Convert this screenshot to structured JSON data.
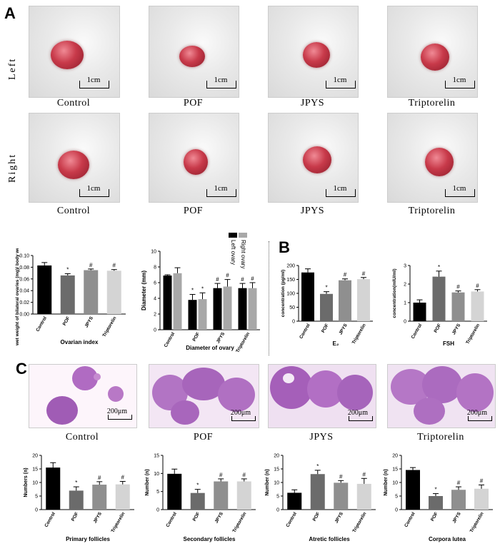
{
  "panels": {
    "a": "A",
    "b": "B",
    "c": "C"
  },
  "sides": {
    "left": "Left",
    "right": "Right"
  },
  "groups": [
    "Control",
    "POF",
    "JPYS",
    "Triptorelin"
  ],
  "scale_ovary": "1cm",
  "scale_histo": "200μm",
  "legend": {
    "left": "Left ovary",
    "right": "Right ovary"
  },
  "colors": {
    "black": "#000000",
    "dark_gray": "#6b6b6b",
    "mid_gray": "#8f8f8f",
    "light_gray": "#d4d4d4",
    "right_gray": "#a8a8a8"
  },
  "chart_data": [
    {
      "type": "bar",
      "id": "ovarian",
      "title": "Ovarian index",
      "ylabel": "wet weight of bilateral ovaries (mg)/ body weight (g)(%)",
      "categories": [
        "Control",
        "POF",
        "JPYS",
        "Triptorelin"
      ],
      "values": [
        0.083,
        0.066,
        0.075,
        0.074
      ],
      "errors": [
        0.005,
        0.003,
        0.002,
        0.002
      ],
      "marks": [
        "",
        "*",
        "#",
        "#"
      ],
      "ylim": [
        0,
        0.1
      ],
      "yticks": [
        "0.00",
        "0.02",
        "0.04",
        "0.06",
        "0.08",
        "0.10"
      ]
    },
    {
      "type": "bar",
      "id": "diameter",
      "title": "Diameter of ovary",
      "ylabel": "Diameter (mm)",
      "categories": [
        "Control",
        "POF",
        "JPYS",
        "Triptorelin"
      ],
      "series": [
        {
          "name": "Left ovary",
          "values": [
            6.9,
            3.8,
            5.3,
            5.3
          ],
          "errors": [
            0.1,
            0.7,
            0.6,
            0.6
          ],
          "marks": [
            "",
            "*",
            "#",
            "#"
          ]
        },
        {
          "name": "Right ovary",
          "values": [
            7.2,
            3.9,
            5.5,
            5.3
          ],
          "errors": [
            0.7,
            0.8,
            0.9,
            0.7
          ],
          "marks": [
            "",
            "*",
            "#",
            "#"
          ]
        }
      ],
      "ylim": [
        0,
        10
      ],
      "yticks": [
        "0",
        "2",
        "4",
        "6",
        "8",
        "10"
      ]
    },
    {
      "type": "bar",
      "id": "e2",
      "title": "E₂",
      "ylabel": "concentration (pg/ml)",
      "categories": [
        "Control",
        "POF",
        "JPYS",
        "Triptorelin"
      ],
      "values": [
        175,
        98,
        147,
        151
      ],
      "errors": [
        13,
        8,
        5,
        6
      ],
      "marks": [
        "",
        "*",
        "#",
        "#"
      ],
      "ylim": [
        0,
        200
      ],
      "yticks": [
        "0",
        "50",
        "100",
        "150",
        "200"
      ]
    },
    {
      "type": "bar",
      "id": "fsh",
      "title": "FSH",
      "ylabel": "concentration(mIU/ml)",
      "categories": [
        "Control",
        "POF",
        "JPYS",
        "Triptorelin"
      ],
      "values": [
        1.0,
        2.4,
        1.55,
        1.6
      ],
      "errors": [
        0.15,
        0.3,
        0.08,
        0.1
      ],
      "marks": [
        "",
        "*",
        "#",
        "#"
      ],
      "ylim": [
        0,
        3
      ],
      "yticks": [
        "0",
        "1",
        "2",
        "3"
      ]
    },
    {
      "type": "bar",
      "id": "primary",
      "title": "Primary follicles",
      "ylabel": "Numbers (n)",
      "categories": [
        "Control",
        "POF",
        "JPYS",
        "Triptorelin"
      ],
      "values": [
        15.5,
        7.0,
        9.2,
        9.3
      ],
      "errors": [
        1.8,
        1.4,
        1.1,
        1.1
      ],
      "marks": [
        "",
        "*",
        "#",
        "#"
      ],
      "ylim": [
        0,
        20
      ],
      "yticks": [
        "0",
        "5",
        "10",
        "15",
        "20"
      ]
    },
    {
      "type": "bar",
      "id": "secondary",
      "title": "Secondary follicles",
      "ylabel": "Number (n)",
      "categories": [
        "Control",
        "POF",
        "JPYS",
        "Triptorelin"
      ],
      "values": [
        9.9,
        4.6,
        7.8,
        7.8
      ],
      "errors": [
        1.3,
        1.0,
        0.7,
        0.7
      ],
      "marks": [
        "",
        "*",
        "#",
        "#"
      ],
      "ylim": [
        0,
        15
      ],
      "yticks": [
        "0",
        "5",
        "10",
        "15"
      ]
    },
    {
      "type": "bar",
      "id": "atretic",
      "title": "Atretic follicles",
      "ylabel": "Number (n)",
      "categories": [
        "Control",
        "POF",
        "JPYS",
        "Triptorelin"
      ],
      "values": [
        6.2,
        13.1,
        9.9,
        9.5
      ],
      "errors": [
        1.1,
        1.4,
        0.8,
        2.0
      ],
      "marks": [
        "",
        "*",
        "#",
        "#"
      ],
      "ylim": [
        0,
        20
      ],
      "yticks": [
        "0",
        "5",
        "10",
        "15",
        "20"
      ]
    },
    {
      "type": "bar",
      "id": "lutea",
      "title": "Corpora lutea",
      "ylabel": "Number (n)",
      "categories": [
        "Control",
        "POF",
        "JPYS",
        "Triptorelin"
      ],
      "values": [
        14.6,
        5.0,
        7.3,
        7.7
      ],
      "errors": [
        0.9,
        0.9,
        1.1,
        1.4
      ],
      "marks": [
        "",
        "*",
        "#",
        "#"
      ],
      "ylim": [
        0,
        20
      ],
      "yticks": [
        "0",
        "5",
        "10",
        "15",
        "20"
      ]
    }
  ]
}
